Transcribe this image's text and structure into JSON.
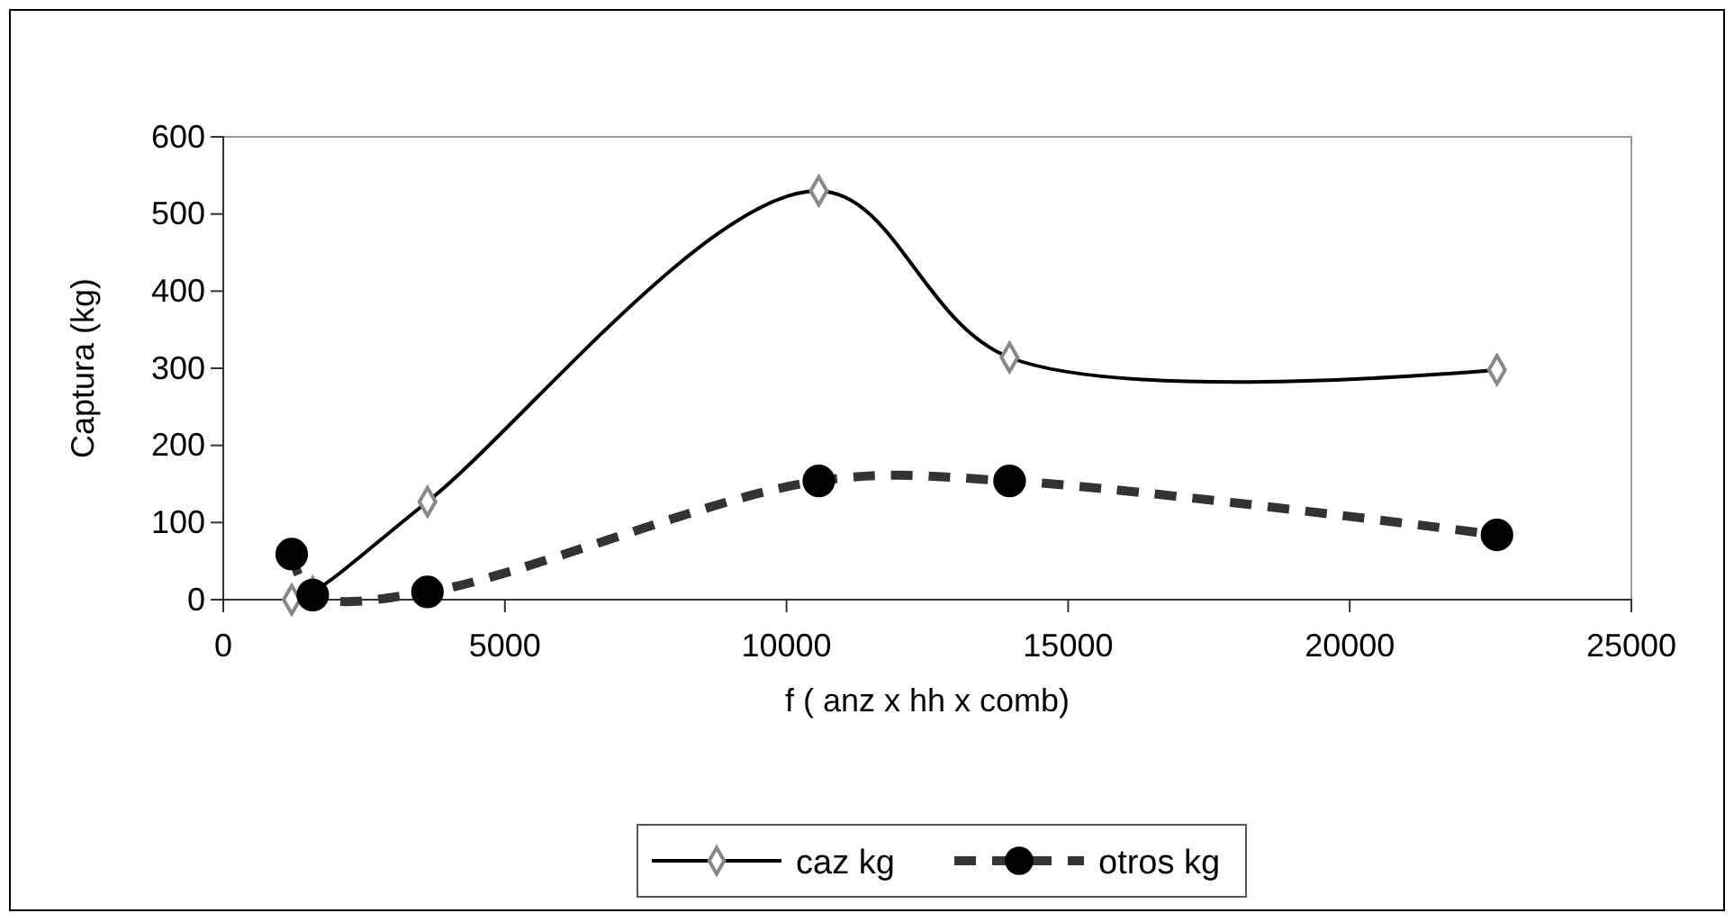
{
  "chart_data": {
    "type": "line",
    "xlabel": "f ( anz x hh x comb)",
    "ylabel": "Captura (kg)",
    "xlim": [
      0,
      25000
    ],
    "xticks": [
      0,
      5000,
      10000,
      15000,
      20000,
      25000
    ],
    "ylim": [
      0,
      600
    ],
    "yticks": [
      0,
      100,
      200,
      300,
      400,
      500,
      600
    ],
    "grid": false,
    "legend": "bottom",
    "series": [
      {
        "name": "caz kg",
        "color": "#000000",
        "marker": "diamond",
        "line_style": "solid",
        "x": [
          1215,
          1589,
          3625,
          10573,
          13960,
          22614
        ],
        "values": [
          0,
          10,
          127,
          530,
          314,
          298
        ]
      },
      {
        "name": "otros kg",
        "color": "#333333",
        "marker": "circle",
        "line_style": "dashed",
        "x": [
          1215,
          1589,
          3625,
          10573,
          13960,
          22614
        ],
        "values": [
          59,
          6,
          10,
          154,
          154,
          84
        ]
      }
    ]
  }
}
